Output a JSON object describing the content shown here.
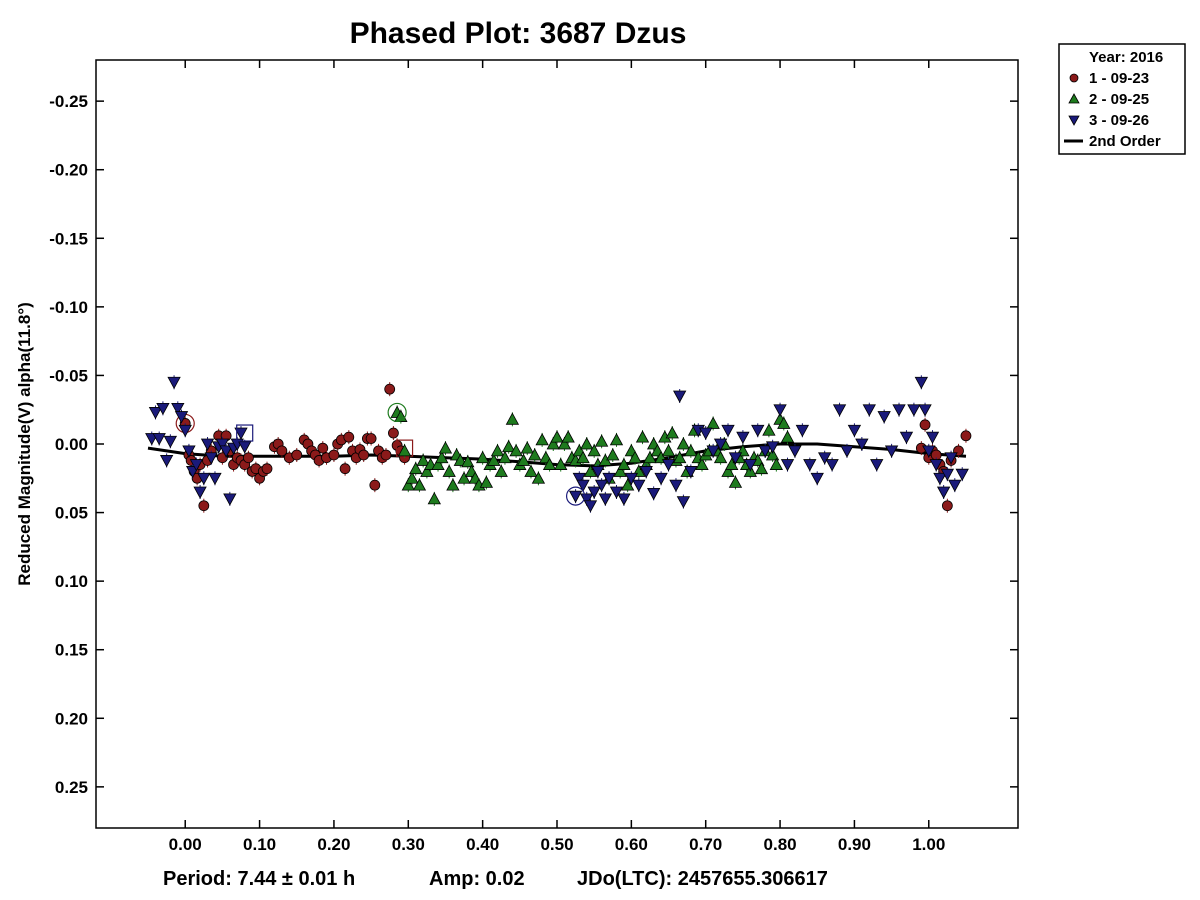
{
  "chart_data": {
    "type": "scatter",
    "title": "Phased Plot: 3687 Dzus",
    "xlabel": "",
    "ylabel": "Reduced Magnitude(V) alpha(11.8°)",
    "xlim": [
      -0.12,
      1.12
    ],
    "ylim": [
      0.28,
      -0.28
    ],
    "y_inverted": true,
    "grid": false,
    "x_ticks": [
      0.0,
      0.1,
      0.2,
      0.3,
      0.4,
      0.5,
      0.6,
      0.7,
      0.8,
      0.9,
      1.0
    ],
    "x_tick_labels": [
      "0.00",
      "0.10",
      "0.20",
      "0.30",
      "0.40",
      "0.50",
      "0.60",
      "0.70",
      "0.80",
      "0.90",
      "1.00"
    ],
    "y_ticks": [
      -0.25,
      -0.2,
      -0.15,
      -0.1,
      -0.05,
      0.0,
      0.05,
      0.1,
      0.15,
      0.2,
      0.25
    ],
    "y_tick_labels": [
      "-0.25",
      "-0.20",
      "-0.15",
      "-0.10",
      "-0.05",
      "0.00",
      "0.05",
      "0.10",
      "0.15",
      "0.20",
      "0.25"
    ],
    "legend": {
      "placement": "outside top-right",
      "header": "Year: 2016",
      "entries": [
        "1 - 09-23",
        "2 - 09-25",
        "3 - 09-26",
        "2nd Order"
      ]
    },
    "series": [
      {
        "name": "1 - 09-23",
        "marker": "circle",
        "color": "#8b1a1a",
        "x": [
          0.0,
          0.005,
          0.008,
          0.012,
          0.016,
          0.02,
          0.025,
          0.03,
          0.035,
          0.045,
          0.05,
          0.055,
          0.06,
          0.065,
          0.07,
          0.075,
          0.08,
          0.085,
          0.09,
          0.095,
          0.1,
          0.105,
          0.11,
          0.12,
          0.125,
          0.13,
          0.14,
          0.15,
          0.16,
          0.165,
          0.17,
          0.175,
          0.18,
          0.185,
          0.19,
          0.2,
          0.205,
          0.21,
          0.215,
          0.22,
          0.225,
          0.23,
          0.235,
          0.24,
          0.245,
          0.25,
          0.255,
          0.26,
          0.265,
          0.27,
          0.275,
          0.28,
          0.285,
          0.29,
          0.295,
          0.99,
          0.995,
          1.0,
          1.005,
          1.01,
          1.015,
          1.02,
          1.025,
          1.03,
          1.04,
          1.05
        ],
        "y": [
          -0.015,
          0.008,
          0.012,
          0.02,
          0.025,
          0.015,
          0.045,
          0.012,
          0.005,
          -0.006,
          0.01,
          -0.006,
          0.005,
          0.015,
          0.01,
          0.012,
          0.015,
          0.01,
          0.02,
          0.018,
          0.025,
          0.02,
          0.018,
          0.002,
          0.0,
          0.005,
          0.01,
          0.008,
          -0.003,
          0.0,
          0.005,
          0.008,
          0.012,
          0.003,
          0.01,
          0.008,
          0.0,
          -0.003,
          0.018,
          -0.005,
          0.005,
          0.01,
          0.004,
          0.008,
          -0.004,
          -0.004,
          0.03,
          0.005,
          0.01,
          0.008,
          -0.04,
          -0.008,
          0.001,
          0.005,
          0.01,
          0.003,
          -0.014,
          0.01,
          0.005,
          0.008,
          0.015,
          0.02,
          0.045,
          0.012,
          0.005,
          -0.006
        ],
        "circled_point": [
          0.0,
          -0.015
        ],
        "boxed_point": [
          0.295,
          0.003
        ]
      },
      {
        "name": "2 - 09-25",
        "marker": "triangle-up",
        "color": "#1e7b1e",
        "x": [
          0.285,
          0.29,
          0.295,
          0.3,
          0.305,
          0.31,
          0.315,
          0.32,
          0.325,
          0.33,
          0.335,
          0.34,
          0.345,
          0.35,
          0.355,
          0.36,
          0.365,
          0.37,
          0.375,
          0.38,
          0.385,
          0.39,
          0.395,
          0.4,
          0.405,
          0.41,
          0.415,
          0.42,
          0.425,
          0.43,
          0.435,
          0.44,
          0.445,
          0.45,
          0.455,
          0.46,
          0.465,
          0.47,
          0.475,
          0.48,
          0.485,
          0.49,
          0.495,
          0.5,
          0.505,
          0.51,
          0.515,
          0.52,
          0.525,
          0.53,
          0.535,
          0.54,
          0.545,
          0.55,
          0.555,
          0.56,
          0.565,
          0.57,
          0.575,
          0.58,
          0.585,
          0.59,
          0.595,
          0.6,
          0.605,
          0.61,
          0.615,
          0.62,
          0.625,
          0.63,
          0.635,
          0.64,
          0.645,
          0.65,
          0.655,
          0.66,
          0.665,
          0.67,
          0.675,
          0.68,
          0.685,
          0.69,
          0.695,
          0.7,
          0.705,
          0.71,
          0.715,
          0.72,
          0.725,
          0.73,
          0.735,
          0.74,
          0.745,
          0.75,
          0.755,
          0.76,
          0.765,
          0.77,
          0.775,
          0.78,
          0.785,
          0.79,
          0.795,
          0.8,
          0.805,
          0.81
        ],
        "y": [
          -0.023,
          -0.02,
          0.005,
          0.03,
          0.025,
          0.018,
          0.03,
          0.012,
          0.02,
          0.015,
          0.04,
          0.015,
          0.01,
          0.003,
          0.02,
          0.03,
          0.008,
          0.012,
          0.025,
          0.013,
          0.02,
          0.025,
          0.03,
          0.01,
          0.028,
          0.015,
          0.012,
          0.005,
          0.02,
          0.01,
          0.002,
          -0.018,
          0.005,
          0.015,
          0.012,
          0.003,
          0.02,
          0.008,
          0.025,
          -0.003,
          0.01,
          0.015,
          0.0,
          -0.005,
          0.015,
          0.0,
          -0.005,
          0.01,
          0.012,
          0.005,
          0.01,
          0.0,
          0.02,
          0.005,
          0.015,
          -0.002,
          0.012,
          0.025,
          0.008,
          -0.003,
          0.02,
          0.015,
          0.03,
          0.005,
          0.01,
          0.02,
          -0.005,
          0.015,
          0.01,
          0.0,
          0.005,
          0.01,
          -0.005,
          0.005,
          -0.008,
          0.012,
          0.01,
          0.0,
          0.02,
          0.005,
          -0.01,
          0.01,
          0.015,
          0.008,
          0.005,
          -0.015,
          0.005,
          0.01,
          0.0,
          0.02,
          0.015,
          0.028,
          0.01,
          0.005,
          0.015,
          0.02,
          0.01,
          0.012,
          0.018,
          0.005,
          -0.01,
          0.008,
          0.015,
          -0.018,
          -0.015,
          -0.005
        ],
        "circled_point": [
          0.285,
          -0.023
        ]
      },
      {
        "name": "3 - 09-26",
        "marker": "triangle-down",
        "color": "#1a1a7a",
        "x": [
          -0.045,
          -0.04,
          -0.035,
          -0.03,
          -0.025,
          -0.02,
          -0.015,
          -0.01,
          -0.005,
          0.0,
          0.005,
          0.01,
          0.015,
          0.02,
          0.025,
          0.03,
          0.035,
          0.04,
          0.045,
          0.05,
          0.055,
          0.06,
          0.065,
          0.07,
          0.075,
          0.08,
          0.525,
          0.53,
          0.535,
          0.54,
          0.545,
          0.55,
          0.555,
          0.56,
          0.565,
          0.57,
          0.58,
          0.59,
          0.6,
          0.61,
          0.62,
          0.63,
          0.64,
          0.65,
          0.66,
          0.665,
          0.67,
          0.68,
          0.69,
          0.7,
          0.71,
          0.72,
          0.73,
          0.74,
          0.75,
          0.76,
          0.77,
          0.78,
          0.79,
          0.8,
          0.81,
          0.82,
          0.83,
          0.84,
          0.85,
          0.86,
          0.87,
          0.88,
          0.89,
          0.9,
          0.91,
          0.92,
          0.93,
          0.94,
          0.95,
          0.96,
          0.97,
          0.98,
          0.99,
          0.995,
          1.0,
          1.005,
          1.01,
          1.015,
          1.02,
          1.025,
          1.03,
          1.035,
          1.045
        ],
        "y": [
          -0.004,
          -0.023,
          -0.004,
          -0.026,
          0.012,
          -0.002,
          -0.045,
          -0.026,
          -0.02,
          -0.01,
          0.005,
          0.02,
          0.015,
          0.035,
          0.025,
          0.0,
          0.01,
          0.025,
          0.002,
          0.0,
          0.005,
          0.04,
          0.003,
          0.0,
          -0.008,
          0.002,
          0.038,
          0.025,
          0.03,
          0.04,
          0.045,
          0.035,
          0.02,
          0.03,
          0.04,
          0.025,
          0.035,
          0.04,
          0.025,
          0.03,
          0.02,
          0.036,
          0.025,
          0.015,
          0.03,
          -0.035,
          0.042,
          0.02,
          -0.01,
          -0.008,
          0.005,
          0.0,
          -0.01,
          0.01,
          -0.005,
          0.015,
          -0.01,
          0.005,
          0.002,
          -0.025,
          0.015,
          0.005,
          -0.01,
          0.015,
          0.025,
          0.01,
          0.015,
          -0.025,
          0.005,
          -0.01,
          0.0,
          -0.025,
          0.015,
          -0.02,
          0.005,
          -0.025,
          -0.005,
          -0.025,
          -0.045,
          -0.025,
          0.005,
          -0.005,
          0.015,
          0.025,
          0.035,
          0.022,
          0.01,
          0.03,
          0.022
        ],
        "circled_point": [
          0.525,
          0.038
        ],
        "boxed_point": [
          0.08,
          -0.008
        ]
      }
    ],
    "fit_curve": {
      "name": "2nd Order",
      "color": "#000000",
      "x": [
        -0.05,
        0.0,
        0.05,
        0.1,
        0.15,
        0.2,
        0.25,
        0.3,
        0.35,
        0.4,
        0.45,
        0.5,
        0.55,
        0.6,
        0.65,
        0.7,
        0.75,
        0.8,
        0.85,
        0.9,
        0.95,
        1.0,
        1.05
      ],
      "y": [
        0.003,
        0.007,
        0.009,
        0.009,
        0.009,
        0.009,
        0.008,
        0.009,
        0.01,
        0.011,
        0.013,
        0.015,
        0.016,
        0.014,
        0.01,
        0.005,
        0.002,
        0.0,
        0.0,
        0.002,
        0.004,
        0.007,
        0.009
      ]
    }
  },
  "footer": {
    "period": "Period: 7.44 ± 0.01 h",
    "amp": "Amp: 0.02",
    "jdo": "JDo(LTC): 2457655.306617"
  }
}
